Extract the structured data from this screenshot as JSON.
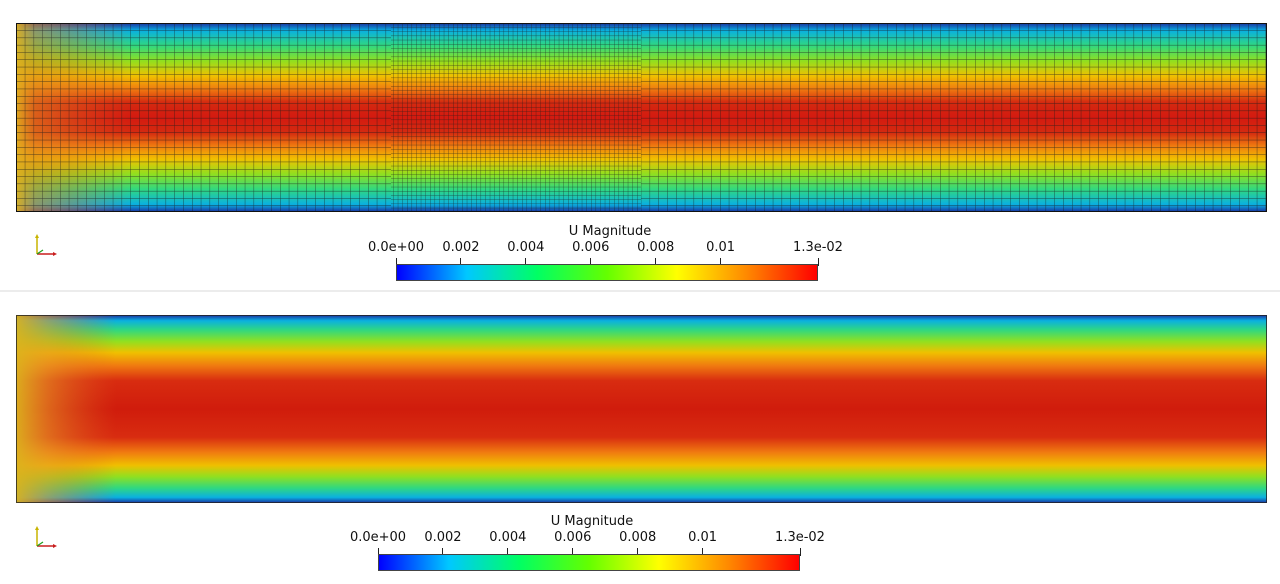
{
  "views": [
    {
      "id": "coarse-mesh-view",
      "rendering": "surface-with-edges",
      "colorbar": {
        "title": "U Magnitude",
        "range": [
          0.0,
          0.013
        ],
        "colormap": "Jet",
        "tick_labels": [
          "0.0e+00",
          "0.002",
          "0.004",
          "0.006",
          "0.008",
          "0.01",
          "1.3e-02"
        ],
        "tick_values": [
          0.0,
          0.002,
          0.004,
          0.006,
          0.008,
          0.01,
          0.013
        ]
      }
    },
    {
      "id": "smooth-field-view",
      "rendering": "surface",
      "colorbar": {
        "title": "U Magnitude",
        "range": [
          0.0,
          0.013
        ],
        "colormap": "Jet",
        "tick_labels": [
          "0.0e+00",
          "0.002",
          "0.004",
          "0.006",
          "0.008",
          "0.01",
          "1.3e-02"
        ],
        "tick_values": [
          0.0,
          0.002,
          0.004,
          0.006,
          0.008,
          0.01,
          0.013
        ]
      }
    }
  ],
  "colors": {
    "jet_stops": [
      "#0000ff",
      "#00c8ff",
      "#00ff64",
      "#64ff00",
      "#ffff00",
      "#ff8800",
      "#ff0000"
    ],
    "field_core": "#d41a10",
    "field_wall": "#1a2fa0",
    "mesh_edge": "#1a1a1a"
  },
  "icons": {
    "orientation_axes": "xyz-axes-icon"
  }
}
